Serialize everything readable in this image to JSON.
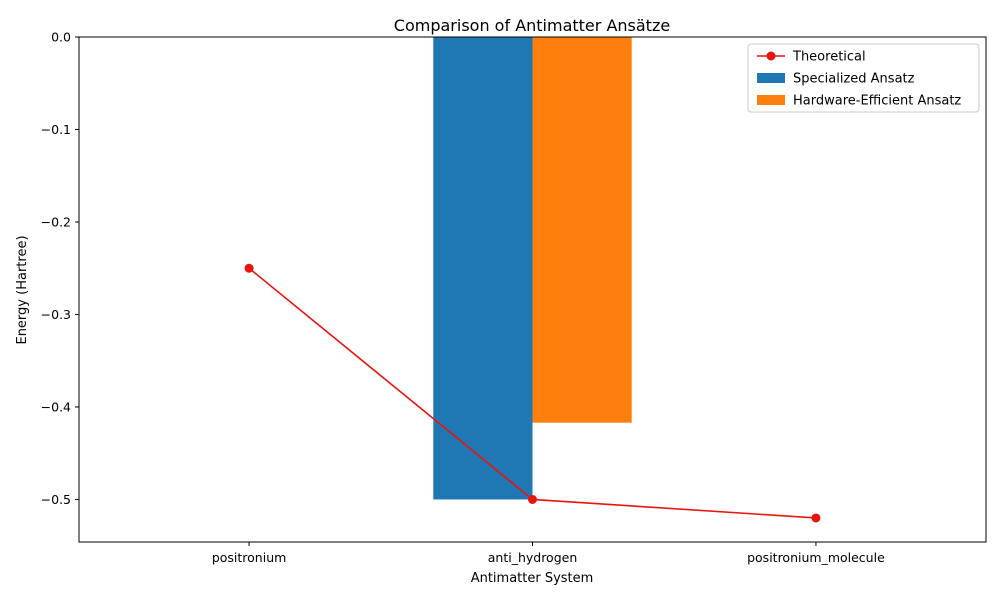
{
  "chart_data": {
    "type": "bar",
    "title": "Comparison of Antimatter Ansätze",
    "xlabel": "Antimatter System",
    "ylabel": "Energy (Hartree)",
    "categories": [
      "positronium",
      "anti_hydrogen",
      "positronium_molecule"
    ],
    "ylim": [
      -0.546,
      0.0
    ],
    "yticks": [
      0.0,
      -0.1,
      -0.2,
      -0.3,
      -0.4,
      -0.5
    ],
    "ytick_labels": [
      "0.0",
      "−0.1",
      "−0.2",
      "−0.3",
      "−0.4",
      "−0.5"
    ],
    "series": [
      {
        "name": "Specialized Ansatz",
        "kind": "bar",
        "color": "#1f77b4",
        "values": [
          null,
          -0.5,
          null
        ]
      },
      {
        "name": "Hardware-Efficient Ansatz",
        "kind": "bar",
        "color": "#ff7f0e",
        "values": [
          null,
          -0.417,
          null
        ]
      },
      {
        "name": "Theoretical",
        "kind": "line",
        "color": "#e8150f",
        "marker": "circle",
        "values": [
          -0.25,
          -0.5,
          -0.52
        ]
      }
    ],
    "legend_position": "top-right",
    "grid": false
  }
}
